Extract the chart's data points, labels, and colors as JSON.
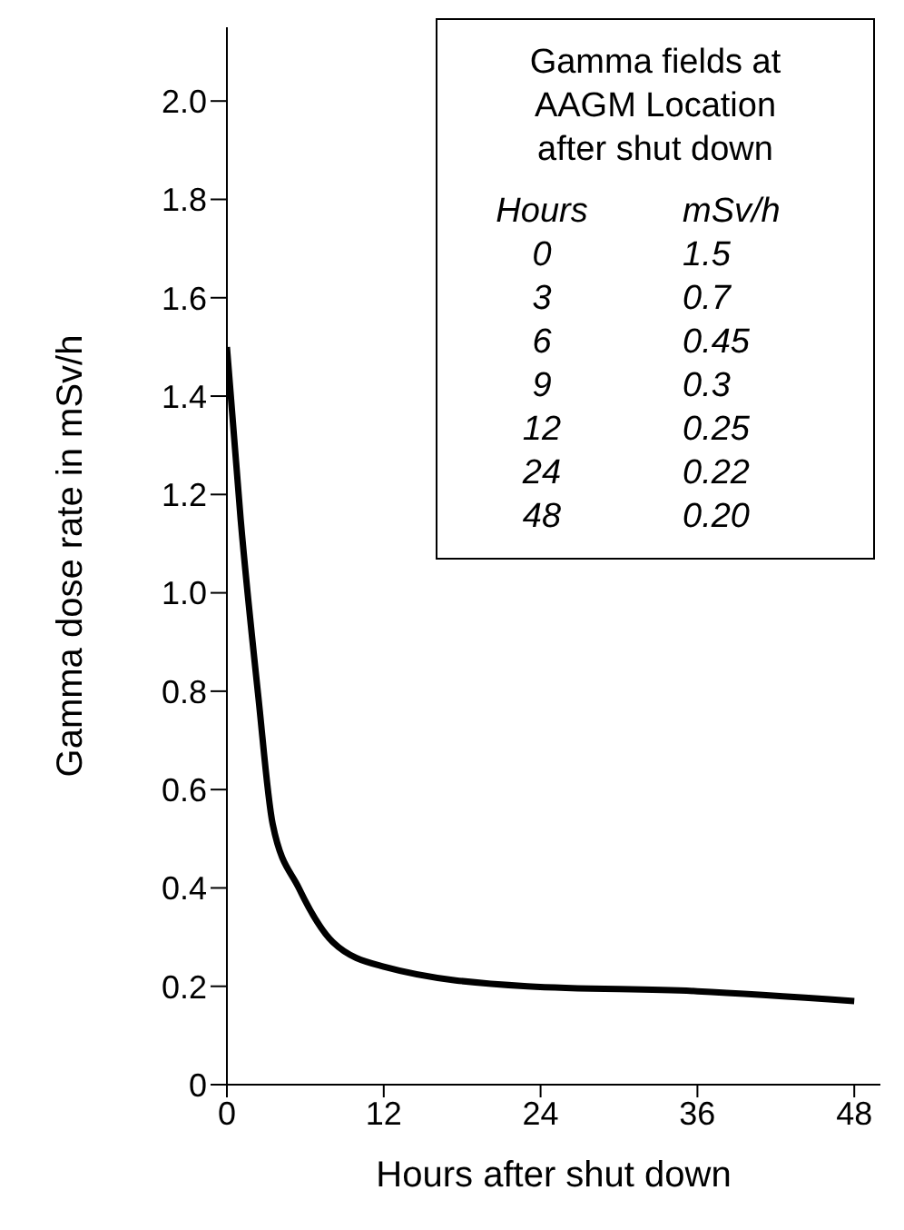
{
  "chart_data": {
    "type": "line",
    "xlabel": "Hours after shut down",
    "ylabel": "Gamma dose rate in mSv/h",
    "x": [
      0,
      1.05,
      2.4,
      3.5,
      5.5,
      8.1,
      12,
      23,
      36,
      48
    ],
    "series": [
      {
        "color": "#000000",
        "values": [
          1.5,
          1.15,
          0.79,
          0.53,
          0.4,
          0.29,
          0.24,
          0.2,
          0.19,
          0.17
        ]
      }
    ],
    "xlim": [
      0,
      50
    ],
    "xticks": [
      0,
      12,
      24,
      36,
      48
    ],
    "ylim": [
      0,
      2.15
    ],
    "yticks": [
      0,
      0.2,
      0.4,
      0.6,
      0.8,
      {
        "value": 1,
        "label": "1.0"
      },
      1.2,
      1.4,
      1.6,
      1.8,
      {
        "value": 2,
        "label": "2.0"
      }
    ],
    "grid": false,
    "legend": false,
    "marker": "none",
    "line_style": "solid",
    "annotations": [
      "Gamma fields at AAGM Location after shut down",
      "Hours",
      "mSv/h",
      "0",
      "1.5",
      "3",
      "0.7",
      "6",
      "0.45",
      "9",
      "0.3",
      "12",
      "0.25",
      "24",
      "0.22",
      "48",
      "0.20"
    ]
  }
}
